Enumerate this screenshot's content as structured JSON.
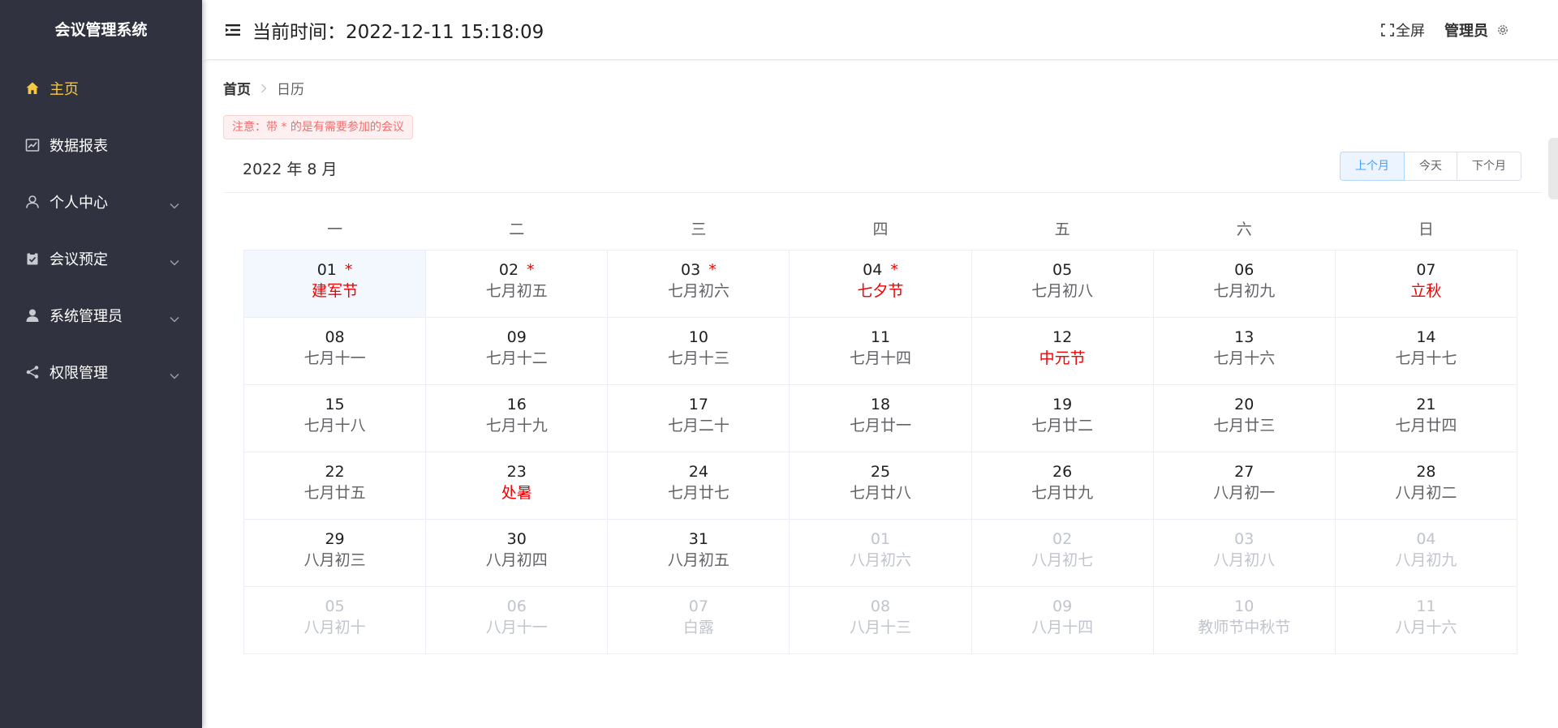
{
  "app": {
    "title": "会议管理系统"
  },
  "sidebar": {
    "items": [
      {
        "label": "主页",
        "icon": "home-icon",
        "active": true,
        "expandable": false
      },
      {
        "label": "数据报表",
        "icon": "chart-icon",
        "active": false,
        "expandable": false
      },
      {
        "label": "个人中心",
        "icon": "user-icon",
        "active": false,
        "expandable": true
      },
      {
        "label": "会议预定",
        "icon": "clipboard-icon",
        "active": false,
        "expandable": true
      },
      {
        "label": "系统管理员",
        "icon": "admin-user-icon",
        "active": false,
        "expandable": true
      },
      {
        "label": "权限管理",
        "icon": "share-icon",
        "active": false,
        "expandable": true
      }
    ]
  },
  "header": {
    "time_label": "当前时间：2022-12-11 15:18:09",
    "fullscreen_label": "全屏",
    "user_label": "管理员"
  },
  "breadcrumb": {
    "home": "首页",
    "current": "日历"
  },
  "notice": {
    "text": "注意：带 * 的是有需要参加的会议"
  },
  "calendar": {
    "title": "2022 年 8 月",
    "buttons": {
      "prev": "上个月",
      "today": "今天",
      "next": "下个月"
    },
    "weekdays": [
      "一",
      "二",
      "三",
      "四",
      "五",
      "六",
      "日"
    ],
    "weeks": [
      [
        {
          "day": "01",
          "lunar": "建军节",
          "festival": true,
          "star": true,
          "other": false,
          "selected": true
        },
        {
          "day": "02",
          "lunar": "七月初五",
          "festival": false,
          "star": true,
          "other": false
        },
        {
          "day": "03",
          "lunar": "七月初六",
          "festival": false,
          "star": true,
          "other": false
        },
        {
          "day": "04",
          "lunar": "七夕节",
          "festival": true,
          "star": true,
          "other": false
        },
        {
          "day": "05",
          "lunar": "七月初八",
          "festival": false,
          "star": false,
          "other": false
        },
        {
          "day": "06",
          "lunar": "七月初九",
          "festival": false,
          "star": false,
          "other": false
        },
        {
          "day": "07",
          "lunar": "立秋",
          "festival": true,
          "star": false,
          "other": false
        }
      ],
      [
        {
          "day": "08",
          "lunar": "七月十一",
          "festival": false,
          "star": false,
          "other": false
        },
        {
          "day": "09",
          "lunar": "七月十二",
          "festival": false,
          "star": false,
          "other": false
        },
        {
          "day": "10",
          "lunar": "七月十三",
          "festival": false,
          "star": false,
          "other": false
        },
        {
          "day": "11",
          "lunar": "七月十四",
          "festival": false,
          "star": false,
          "other": false
        },
        {
          "day": "12",
          "lunar": "中元节",
          "festival": true,
          "star": false,
          "other": false
        },
        {
          "day": "13",
          "lunar": "七月十六",
          "festival": false,
          "star": false,
          "other": false
        },
        {
          "day": "14",
          "lunar": "七月十七",
          "festival": false,
          "star": false,
          "other": false
        }
      ],
      [
        {
          "day": "15",
          "lunar": "七月十八",
          "festival": false,
          "star": false,
          "other": false
        },
        {
          "day": "16",
          "lunar": "七月十九",
          "festival": false,
          "star": false,
          "other": false
        },
        {
          "day": "17",
          "lunar": "七月二十",
          "festival": false,
          "star": false,
          "other": false
        },
        {
          "day": "18",
          "lunar": "七月廿一",
          "festival": false,
          "star": false,
          "other": false
        },
        {
          "day": "19",
          "lunar": "七月廿二",
          "festival": false,
          "star": false,
          "other": false
        },
        {
          "day": "20",
          "lunar": "七月廿三",
          "festival": false,
          "star": false,
          "other": false
        },
        {
          "day": "21",
          "lunar": "七月廿四",
          "festival": false,
          "star": false,
          "other": false
        }
      ],
      [
        {
          "day": "22",
          "lunar": "七月廿五",
          "festival": false,
          "star": false,
          "other": false
        },
        {
          "day": "23",
          "lunar": "处暑",
          "festival": true,
          "star": false,
          "other": false
        },
        {
          "day": "24",
          "lunar": "七月廿七",
          "festival": false,
          "star": false,
          "other": false
        },
        {
          "day": "25",
          "lunar": "七月廿八",
          "festival": false,
          "star": false,
          "other": false
        },
        {
          "day": "26",
          "lunar": "七月廿九",
          "festival": false,
          "star": false,
          "other": false
        },
        {
          "day": "27",
          "lunar": "八月初一",
          "festival": false,
          "star": false,
          "other": false
        },
        {
          "day": "28",
          "lunar": "八月初二",
          "festival": false,
          "star": false,
          "other": false
        }
      ],
      [
        {
          "day": "29",
          "lunar": "八月初三",
          "festival": false,
          "star": false,
          "other": false
        },
        {
          "day": "30",
          "lunar": "八月初四",
          "festival": false,
          "star": false,
          "other": false
        },
        {
          "day": "31",
          "lunar": "八月初五",
          "festival": false,
          "star": false,
          "other": false
        },
        {
          "day": "01",
          "lunar": "八月初六",
          "festival": false,
          "star": false,
          "other": true
        },
        {
          "day": "02",
          "lunar": "八月初七",
          "festival": false,
          "star": false,
          "other": true
        },
        {
          "day": "03",
          "lunar": "八月初八",
          "festival": false,
          "star": false,
          "other": true
        },
        {
          "day": "04",
          "lunar": "八月初九",
          "festival": false,
          "star": false,
          "other": true
        }
      ],
      [
        {
          "day": "05",
          "lunar": "八月初十",
          "festival": false,
          "star": false,
          "other": true
        },
        {
          "day": "06",
          "lunar": "八月十一",
          "festival": false,
          "star": false,
          "other": true
        },
        {
          "day": "07",
          "lunar": "白露",
          "festival": false,
          "star": false,
          "other": true
        },
        {
          "day": "08",
          "lunar": "八月十三",
          "festival": false,
          "star": false,
          "other": true
        },
        {
          "day": "09",
          "lunar": "八月十四",
          "festival": false,
          "star": false,
          "other": true
        },
        {
          "day": "10",
          "lunar": "教师节中秋节",
          "festival": false,
          "star": false,
          "other": true
        },
        {
          "day": "11",
          "lunar": "八月十六",
          "festival": false,
          "star": false,
          "other": true
        }
      ]
    ],
    "star_symbol": "*"
  },
  "colors": {
    "sidebar_bg": "#30333f",
    "active": "#f7c843",
    "festival": "#f00000",
    "primary": "#409eff"
  }
}
